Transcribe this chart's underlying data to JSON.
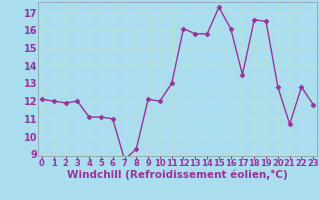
{
  "x": [
    0,
    1,
    2,
    3,
    4,
    5,
    6,
    7,
    8,
    9,
    10,
    11,
    12,
    13,
    14,
    15,
    16,
    17,
    18,
    19,
    20,
    21,
    22,
    23
  ],
  "y": [
    12.1,
    12.0,
    11.9,
    12.0,
    11.1,
    11.1,
    11.0,
    8.7,
    9.3,
    12.1,
    12.0,
    13.0,
    16.1,
    15.8,
    15.8,
    17.3,
    16.1,
    13.5,
    16.6,
    16.5,
    12.8,
    10.7,
    12.8,
    11.8
  ],
  "line_color": "#993399",
  "marker": "D",
  "marker_size": 2.5,
  "bg_color": "#aaddee",
  "grid_color": "#bbdddd",
  "xlabel": "Windchill (Refroidissement éolien,°C)",
  "xlabel_fontsize": 7.5,
  "ylim": [
    8.9,
    17.6
  ],
  "xlim": [
    -0.3,
    23.3
  ],
  "yticks": [
    9,
    10,
    11,
    12,
    13,
    14,
    15,
    16,
    17
  ],
  "xticks": [
    0,
    1,
    2,
    3,
    4,
    5,
    6,
    7,
    8,
    9,
    10,
    11,
    12,
    13,
    14,
    15,
    16,
    17,
    18,
    19,
    20,
    21,
    22,
    23
  ],
  "ytick_fontsize": 7,
  "xtick_fontsize": 6,
  "line_width": 1.0,
  "tick_color": "#993399",
  "label_color": "#993399"
}
